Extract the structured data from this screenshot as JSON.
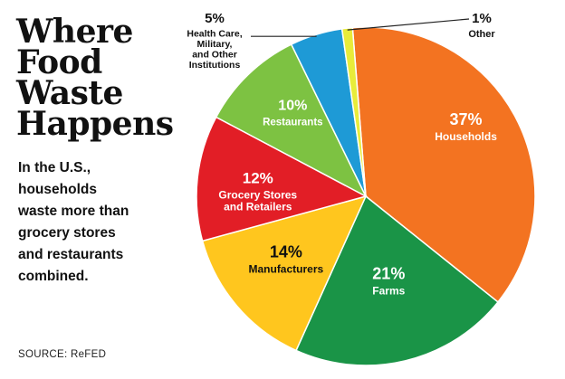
{
  "chart_data": {
    "type": "pie",
    "title": [
      "Where",
      "Food",
      "Waste",
      "Happens"
    ],
    "subtitle": [
      "In the U.S.,",
      "households",
      "waste more than",
      "grocery stores",
      "and restaurants",
      "combined."
    ],
    "source": "SOURCE: ReFED",
    "slices": [
      {
        "pct_label": "37%",
        "name_lines": [
          "Households"
        ],
        "value": 37,
        "color": "#F37321",
        "text_color": "#ffffff"
      },
      {
        "pct_label": "21%",
        "name_lines": [
          "Farms"
        ],
        "value": 21,
        "color": "#1A9447",
        "text_color": "#ffffff"
      },
      {
        "pct_label": "14%",
        "name_lines": [
          "Manufacturers"
        ],
        "value": 14,
        "color": "#FFC61E",
        "text_color": "#111111"
      },
      {
        "pct_label": "12%",
        "name_lines": [
          "Grocery Stores",
          "and Retailers"
        ],
        "value": 12,
        "color": "#E21E26",
        "text_color": "#ffffff"
      },
      {
        "pct_label": "10%",
        "name_lines": [
          "Restaurants"
        ],
        "value": 10,
        "color": "#7DC242",
        "text_color": "#ffffff"
      },
      {
        "pct_label": "5%",
        "name_lines": [
          "Health Care,",
          "Military,",
          "and Other",
          "Institutions"
        ],
        "value": 5,
        "color": "#1E9AD6",
        "text_color": "#111111"
      },
      {
        "pct_label": "1%",
        "name_lines": [
          "Other"
        ],
        "value": 1,
        "color": "#E8EC3A",
        "text_color": "#111111"
      }
    ]
  }
}
